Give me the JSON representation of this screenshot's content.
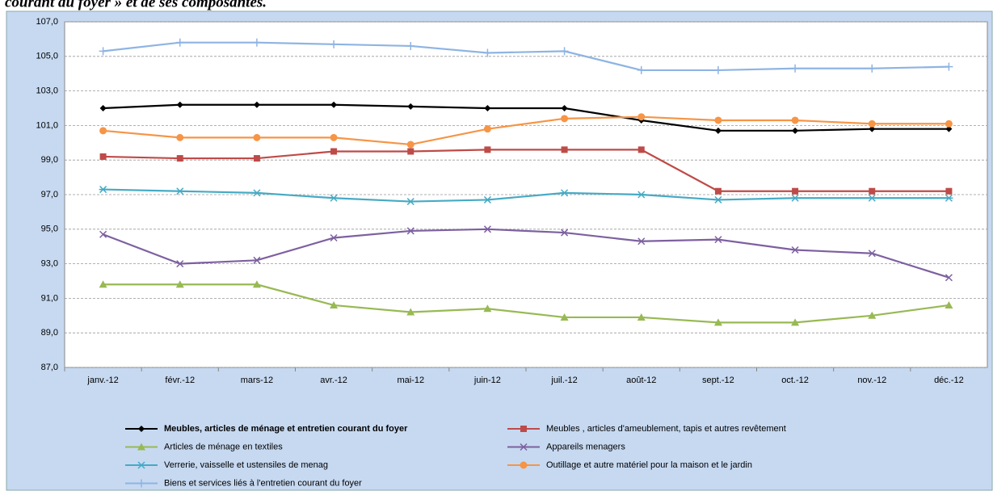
{
  "chart_data": {
    "type": "line",
    "title": "courant du foyer » et de ses composantes.",
    "categories": [
      "janv.-12",
      "févr.-12",
      "mars-12",
      "avr.-12",
      "mai-12",
      "juin-12",
      "juil.-12",
      "août-12",
      "sept.-12",
      "oct.-12",
      "nov.-12",
      "déc.-12"
    ],
    "ylim": [
      87,
      107
    ],
    "yticks": [
      {
        "value": 87,
        "label": "87,0"
      },
      {
        "value": 89,
        "label": "89,0"
      },
      {
        "value": 91,
        "label": "91,0"
      },
      {
        "value": 93,
        "label": "93,0"
      },
      {
        "value": 95,
        "label": "95,0"
      },
      {
        "value": 97,
        "label": "97,0"
      },
      {
        "value": 99,
        "label": "99,0"
      },
      {
        "value": 101,
        "label": "101,0"
      },
      {
        "value": 103,
        "label": "103,0"
      },
      {
        "value": 105,
        "label": "105,0"
      },
      {
        "value": 107,
        "label": "107,0"
      }
    ],
    "grid": true,
    "series": [
      {
        "name": "Meubles, articles de ménage et entretien courant du foyer",
        "color": "#000000",
        "marker": "diamond",
        "bold": true,
        "values": [
          102.0,
          102.2,
          102.2,
          102.2,
          102.1,
          102.0,
          102.0,
          101.3,
          100.7,
          100.7,
          100.8,
          100.8
        ]
      },
      {
        "name": "Meubles , articles d'ameublement, tapis et autres revêtement",
        "color": "#be4b48",
        "marker": "square",
        "values": [
          99.2,
          99.1,
          99.1,
          99.5,
          99.5,
          99.6,
          99.6,
          99.6,
          97.2,
          97.2,
          97.2,
          97.2
        ]
      },
      {
        "name": "Articles de ménage en textiles",
        "color": "#98b954",
        "marker": "triangle",
        "values": [
          91.8,
          91.8,
          91.8,
          90.6,
          90.2,
          90.4,
          89.9,
          89.9,
          89.6,
          89.6,
          90.0,
          90.6
        ]
      },
      {
        "name": "Appareils menagers",
        "color": "#7d60a0",
        "marker": "x",
        "values": [
          94.7,
          93.0,
          93.2,
          94.5,
          94.9,
          95.0,
          94.8,
          94.3,
          94.4,
          93.8,
          93.6,
          92.2
        ]
      },
      {
        "name": "Verrerie, vaisselle et ustensiles de menag",
        "color": "#46aac5",
        "marker": "star",
        "values": [
          97.3,
          97.2,
          97.1,
          96.8,
          96.6,
          96.7,
          97.1,
          97.0,
          96.7,
          96.8,
          96.8,
          96.8
        ]
      },
      {
        "name": "Outillage et autre matériel pour la maison et le jardin",
        "color": "#f69546",
        "marker": "circle",
        "values": [
          100.7,
          100.3,
          100.3,
          100.3,
          99.9,
          100.8,
          101.4,
          101.5,
          101.3,
          101.3,
          101.1,
          101.1
        ]
      },
      {
        "name": "Biens et services liés à l'entretien courant du foyer",
        "color": "#8eb4e3",
        "marker": "plus",
        "values": [
          105.3,
          105.8,
          105.8,
          105.7,
          105.6,
          105.2,
          105.3,
          104.2,
          104.2,
          104.3,
          104.3,
          104.4
        ]
      }
    ]
  }
}
